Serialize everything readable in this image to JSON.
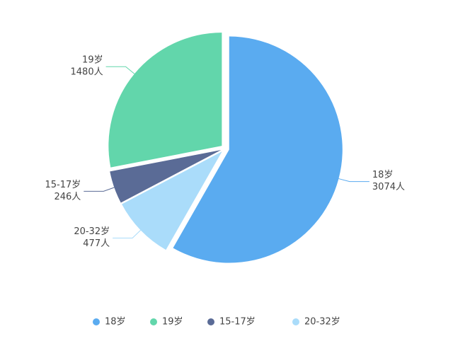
{
  "chart_data": {
    "type": "pie",
    "categories": [
      "18岁",
      "19岁",
      "15-17岁",
      "20-32岁"
    ],
    "values": [
      3074,
      1480,
      246,
      477
    ],
    "value_labels": [
      "3074人",
      "1480人",
      "246人",
      "477人"
    ],
    "colors": [
      "#5aabf0",
      "#62d6ab",
      "#5a6b96",
      "#aadcfa"
    ],
    "legend": "bottom"
  }
}
